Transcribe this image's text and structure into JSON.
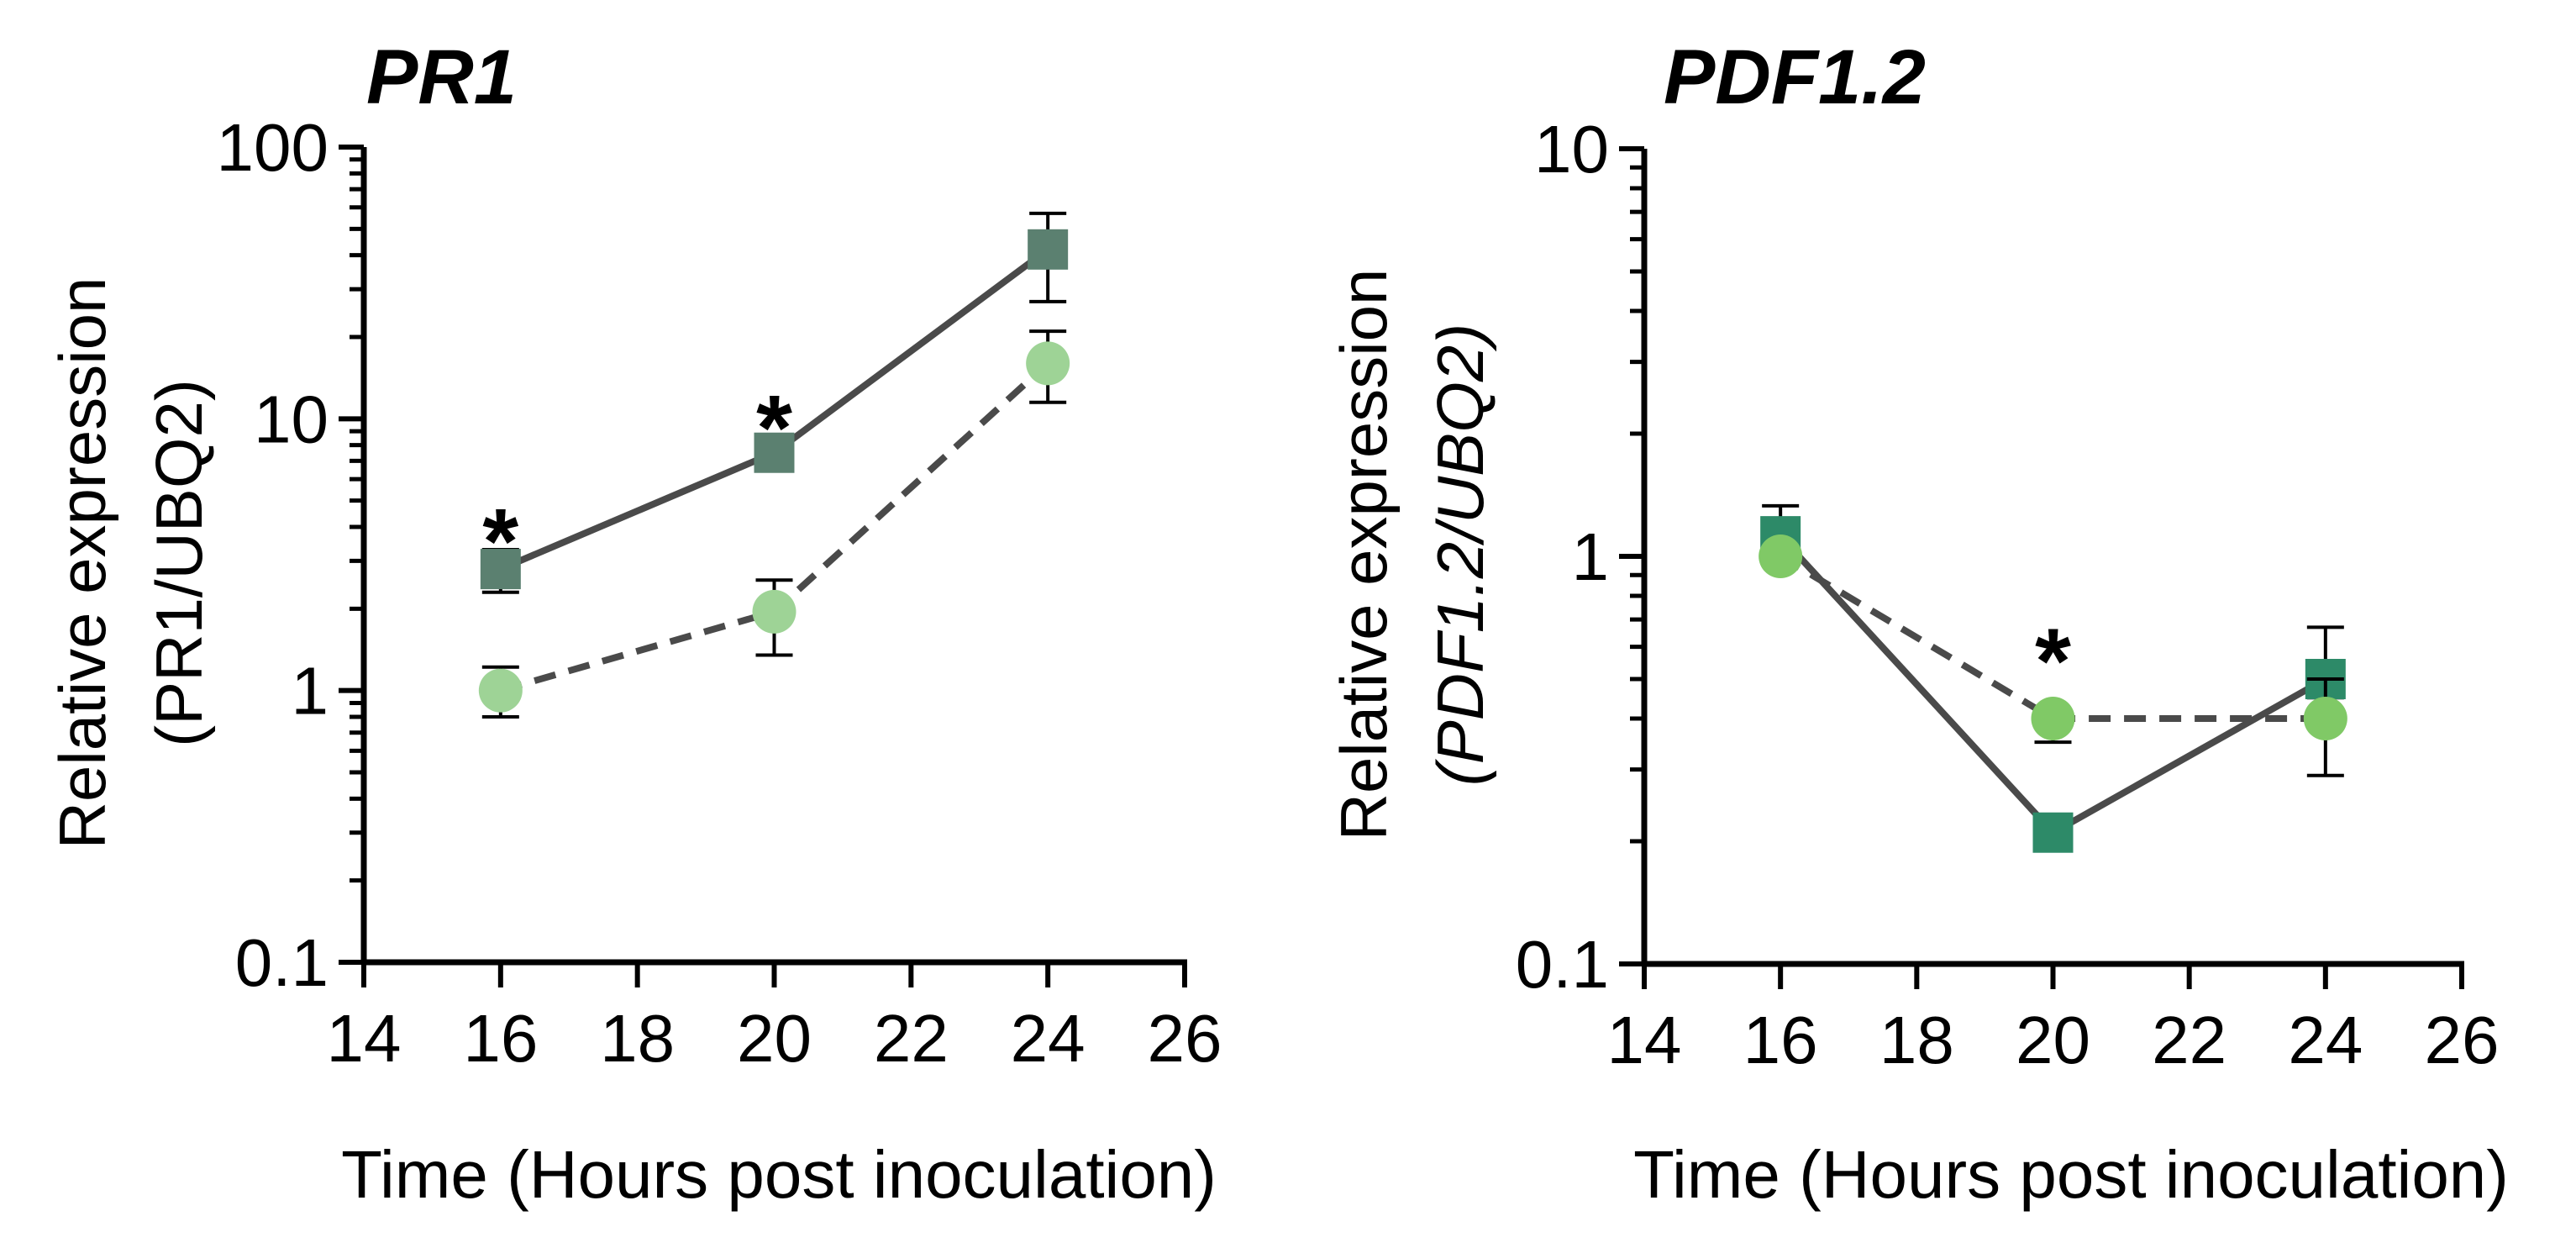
{
  "chart_data": [
    {
      "type": "line",
      "title": "PR1",
      "xlabel": "Time (Hours post inoculation)",
      "ylabel_line1": "Relative expression",
      "ylabel_line2": "(PR1/UBQ2)",
      "ylabel_line2_italic": false,
      "xlim": [
        14,
        26
      ],
      "ylim": [
        0.1,
        100
      ],
      "yscale": "log",
      "xticks": [
        14,
        16,
        18,
        20,
        22,
        24,
        26
      ],
      "yticks": [
        0.1,
        1,
        10,
        100
      ],
      "yticklabels": [
        "0.1",
        "1",
        "10",
        "100"
      ],
      "grid": false,
      "series": [
        {
          "marker": "square",
          "line": "solid",
          "color": "#5b8070",
          "x": [
            16,
            20,
            24
          ],
          "y": [
            2.8,
            7.5,
            42
          ],
          "err_low": [
            2.3,
            6.8,
            27
          ],
          "err_high": [
            3.3,
            8.2,
            57
          ]
        },
        {
          "marker": "circle",
          "line": "dashed",
          "color": "#9ed396",
          "x": [
            16,
            20,
            24
          ],
          "y": [
            1.0,
            1.95,
            16
          ],
          "err_low": [
            0.8,
            1.35,
            11.5
          ],
          "err_high": [
            1.22,
            2.55,
            21
          ]
        }
      ],
      "annotations": [
        {
          "text": "*",
          "x": 16,
          "y": 4.2
        },
        {
          "text": "*",
          "x": 20,
          "y": 11.0
        }
      ]
    },
    {
      "type": "line",
      "title": "PDF1.2",
      "xlabel": "Time (Hours post inoculation)",
      "ylabel_line1": "Relative expression",
      "ylabel_line2": "(PDF1.2/UBQ2)",
      "ylabel_line2_italic": true,
      "xlim": [
        14,
        26
      ],
      "ylim": [
        0.1,
        10
      ],
      "yscale": "log",
      "xticks": [
        14,
        16,
        18,
        20,
        22,
        24,
        26
      ],
      "yticks": [
        0.1,
        1,
        10
      ],
      "yticklabels": [
        "0.1",
        "1",
        "10"
      ],
      "grid": false,
      "series": [
        {
          "marker": "square",
          "line": "solid",
          "color": "#2d8a68",
          "x": [
            16,
            20,
            24
          ],
          "y": [
            1.12,
            0.21,
            0.5
          ],
          "err_low": [
            0.95,
            0.2,
            0.45
          ],
          "err_high": [
            1.33,
            0.22,
            0.67
          ]
        },
        {
          "marker": "circle",
          "line": "dashed",
          "color": "#80c966",
          "x": [
            16,
            20,
            24
          ],
          "y": [
            1.0,
            0.4,
            0.4
          ],
          "err_low": [
            0.96,
            0.35,
            0.29
          ],
          "err_high": [
            1.04,
            0.42,
            0.5
          ]
        }
      ],
      "annotations": [
        {
          "text": "*",
          "x": 20,
          "y": 0.62
        }
      ]
    }
  ]
}
